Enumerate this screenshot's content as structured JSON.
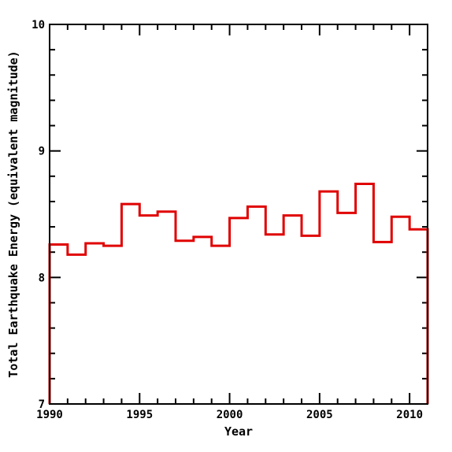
{
  "chart_data": {
    "type": "line",
    "style": "step",
    "title": "",
    "xlabel": "Year",
    "ylabel": "Total Earthquake Energy (equivalent magnitude)",
    "xlim": [
      1990,
      2011
    ],
    "ylim": [
      7,
      10
    ],
    "x_ticks": [
      "1990",
      "1995",
      "2000",
      "2005",
      "2010"
    ],
    "x_tick_values": [
      1990,
      1995,
      2000,
      2005,
      2010
    ],
    "y_ticks": [
      "7",
      "8",
      "9",
      "10"
    ],
    "y_tick_values": [
      7,
      8,
      9,
      10
    ],
    "grid": false,
    "line_color": "#e00000",
    "series": [
      {
        "x": [
          1990,
          1991,
          1992,
          1993,
          1994,
          1995,
          1996,
          1997,
          1998,
          1999,
          2000,
          2001,
          2002,
          2003,
          2004,
          2005,
          2006,
          2007,
          2008,
          2009,
          2010
        ],
        "values": [
          8.26,
          8.18,
          8.27,
          8.25,
          8.58,
          8.49,
          8.52,
          8.29,
          8.32,
          8.25,
          8.47,
          8.56,
          8.34,
          8.49,
          8.33,
          8.68,
          8.51,
          8.74,
          8.28,
          8.48,
          8.38
        ]
      }
    ]
  }
}
